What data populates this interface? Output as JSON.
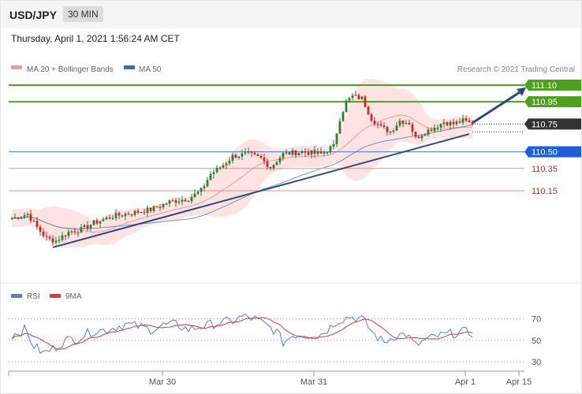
{
  "header": {
    "symbol": "USD/JPY",
    "timeframe": "30 MIN",
    "datetime": "Thursday, April 1, 2021 1:56:24 AM CET"
  },
  "legend": {
    "ma20": "MA 20 + Bollinger Bands",
    "ma50": "MA 50",
    "credit": "Research © 2021 Trading Central",
    "rsi": "RSI",
    "ma9": "9MA"
  },
  "colors": {
    "candle_up": "#2e7d32",
    "candle_down": "#c62828",
    "bollinger": "#fdd9d9",
    "ma20": "#e88a8a",
    "ma50": "#3a6ea5",
    "trendline": "#2c4a7e",
    "resistance": "#4ea11f",
    "support": "#5b8fe0",
    "minor": "#f08a8a",
    "rsi_line": "#5b7bd5",
    "rsi_ma": "#d93a3a"
  },
  "chart_data": [
    {
      "type": "candlestick",
      "x_labels": [
        "Mar 30",
        "Mar 31",
        "Apr 1",
        "Apr 15"
      ],
      "y_min": 109.55,
      "y_max": 111.15,
      "levels": [
        {
          "value": 111.1,
          "label": "111.10",
          "kind": "resistance"
        },
        {
          "value": 110.95,
          "label": "110.95",
          "kind": "resistance"
        },
        {
          "value": 110.75,
          "label": "110.75",
          "kind": "current"
        },
        {
          "value": 110.5,
          "label": "110.50",
          "kind": "support"
        },
        {
          "value": 110.35,
          "label": "110.35",
          "kind": "minor"
        },
        {
          "value": 110.15,
          "label": "110.15",
          "kind": "minor"
        }
      ],
      "price_path": [
        [
          0,
          109.9
        ],
        [
          5,
          109.94
        ],
        [
          8,
          109.82
        ],
        [
          11,
          109.72
        ],
        [
          14,
          109.7
        ],
        [
          18,
          109.78
        ],
        [
          22,
          109.8
        ],
        [
          26,
          109.86
        ],
        [
          32,
          109.92
        ],
        [
          38,
          109.95
        ],
        [
          44,
          109.98
        ],
        [
          50,
          110.05
        ],
        [
          56,
          110.08
        ],
        [
          60,
          110.15
        ],
        [
          63,
          110.3
        ],
        [
          67,
          110.38
        ],
        [
          70,
          110.46
        ],
        [
          75,
          110.48
        ],
        [
          79,
          110.44
        ],
        [
          82,
          110.36
        ],
        [
          86,
          110.48
        ],
        [
          92,
          110.5
        ],
        [
          98,
          110.48
        ],
        [
          102,
          110.55
        ],
        [
          104,
          110.8
        ],
        [
          106,
          110.95
        ],
        [
          108,
          111.0
        ],
        [
          111,
          110.98
        ],
        [
          114,
          110.8
        ],
        [
          117,
          110.72
        ],
        [
          120,
          110.68
        ],
        [
          123,
          110.78
        ],
        [
          126,
          110.76
        ],
        [
          128,
          110.62
        ],
        [
          131,
          110.68
        ],
        [
          134,
          110.72
        ],
        [
          137,
          110.77
        ],
        [
          140,
          110.75
        ],
        [
          143,
          110.78
        ],
        [
          145,
          110.76
        ]
      ],
      "projection": {
        "from": [
          146,
          110.76
        ],
        "to": [
          163,
          111.08
        ]
      },
      "trendline": {
        "from": [
          13,
          109.64
        ],
        "to": [
          145,
          110.66
        ]
      }
    },
    {
      "type": "line",
      "title": "RSI",
      "y_ticks": [
        70,
        50,
        30
      ],
      "y_min": 25,
      "y_max": 80,
      "rsi_path": [
        [
          0,
          55
        ],
        [
          4,
          60
        ],
        [
          7,
          45
        ],
        [
          10,
          38
        ],
        [
          13,
          42
        ],
        [
          17,
          50
        ],
        [
          21,
          52
        ],
        [
          25,
          58
        ],
        [
          30,
          60
        ],
        [
          36,
          65
        ],
        [
          40,
          63
        ],
        [
          44,
          60
        ],
        [
          48,
          64
        ],
        [
          52,
          65
        ],
        [
          56,
          60
        ],
        [
          60,
          63
        ],
        [
          65,
          66
        ],
        [
          70,
          68
        ],
        [
          73,
          72
        ],
        [
          77,
          70
        ],
        [
          80,
          65
        ],
        [
          84,
          58
        ],
        [
          86,
          48
        ],
        [
          89,
          55
        ],
        [
          93,
          56
        ],
        [
          97,
          54
        ],
        [
          100,
          60
        ],
        [
          103,
          68
        ],
        [
          107,
          72
        ],
        [
          111,
          70
        ],
        [
          115,
          55
        ],
        [
          118,
          48
        ],
        [
          121,
          54
        ],
        [
          125,
          56
        ],
        [
          128,
          45
        ],
        [
          131,
          50
        ],
        [
          135,
          54
        ],
        [
          139,
          56
        ],
        [
          143,
          58
        ],
        [
          145,
          57
        ]
      ]
    }
  ]
}
